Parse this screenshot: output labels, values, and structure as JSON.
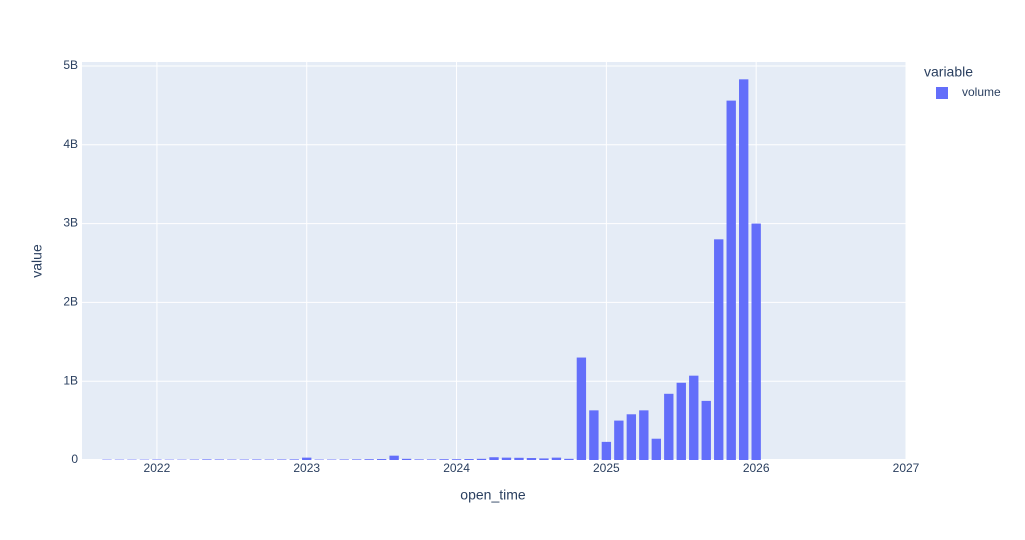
{
  "chart_data": {
    "type": "bar",
    "xlabel": "open_time",
    "ylabel": "value",
    "legend_title": "variable",
    "legend": "right",
    "x": [
      "2021-09",
      "2021-10",
      "2021-11",
      "2021-12",
      "2022-01",
      "2022-02",
      "2022-03",
      "2022-04",
      "2022-05",
      "2022-06",
      "2022-07",
      "2022-08",
      "2022-09",
      "2022-10",
      "2022-11",
      "2022-12",
      "2023-01",
      "2023-02",
      "2023-03",
      "2023-04",
      "2023-05",
      "2023-06",
      "2023-07",
      "2023-08",
      "2023-09",
      "2023-10",
      "2023-11",
      "2023-12",
      "2024-01",
      "2024-02",
      "2024-03",
      "2024-04",
      "2024-05",
      "2024-06",
      "2024-07",
      "2024-08",
      "2024-09",
      "2024-10",
      "2024-11",
      "2024-12",
      "2025-01",
      "2025-02",
      "2025-03",
      "2025-04",
      "2025-05",
      "2025-06",
      "2025-07",
      "2025-08",
      "2025-09",
      "2025-10",
      "2025-11",
      "2025-12",
      "2026-01"
    ],
    "series": [
      {
        "name": "volume",
        "color": "#636efa",
        "values": [
          5000000,
          5000000,
          5000000,
          5000000,
          6000000,
          5000000,
          5000000,
          6000000,
          8000000,
          7000000,
          6000000,
          6000000,
          7000000,
          6000000,
          7000000,
          8000000,
          30000000,
          6000000,
          6000000,
          7000000,
          8000000,
          10000000,
          12000000,
          55000000,
          15000000,
          8000000,
          8000000,
          10000000,
          10000000,
          12000000,
          15000000,
          35000000,
          30000000,
          28000000,
          25000000,
          20000000,
          30000000,
          15000000,
          1300000000,
          630000000,
          230000000,
          500000000,
          580000000,
          630000000,
          270000000,
          840000000,
          980000000,
          1070000000,
          750000000,
          2800000000,
          4560000000,
          4830000000,
          3000000000
        ]
      }
    ],
    "xlim": [
      "2021-07",
      "2027-01"
    ],
    "xticks": [
      "2022",
      "2023",
      "2024",
      "2025",
      "2026",
      "2027"
    ],
    "ylim": [
      0,
      5050000000
    ],
    "yticks": [
      0,
      {
        "value": 1000000000,
        "label": "1B"
      },
      {
        "value": 2000000000,
        "label": "2B"
      },
      {
        "value": 3000000000,
        "label": "3B"
      },
      {
        "value": 4000000000,
        "label": "4B"
      },
      {
        "value": 5000000000,
        "label": "5B"
      }
    ],
    "grid": true
  }
}
